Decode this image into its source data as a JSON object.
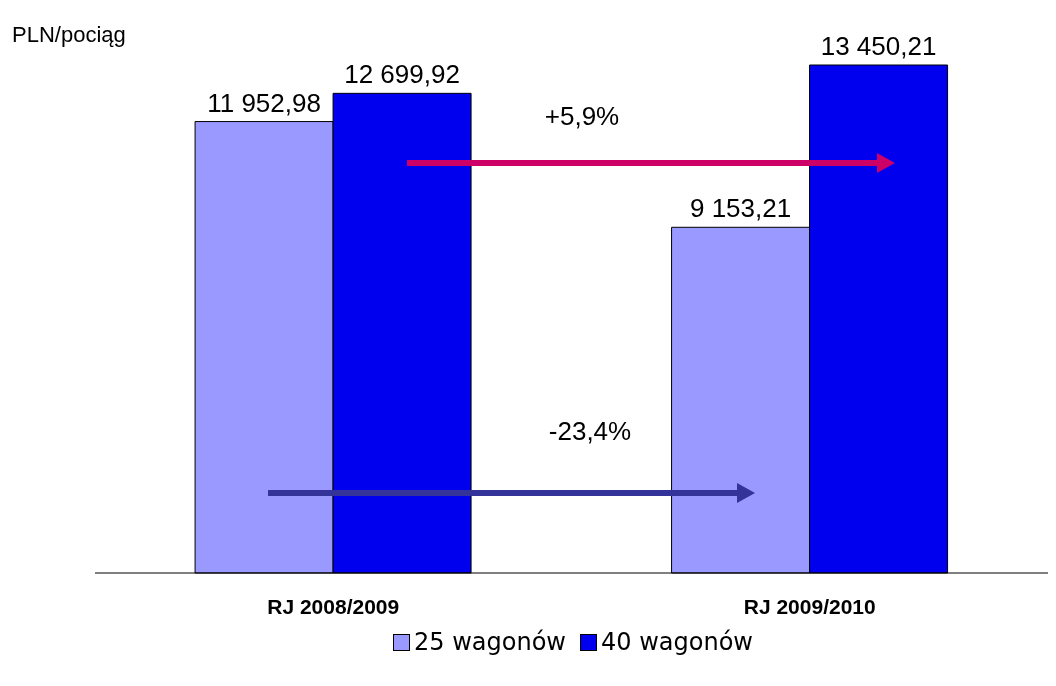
{
  "chart_data": {
    "type": "bar",
    "ylabel": "PLN/pociąg",
    "categories": [
      "RJ 2008/2009",
      "RJ 2009/2010"
    ],
    "series": [
      {
        "name": "25 wagonów",
        "color": "#9999ff",
        "values": [
          11952.98,
          9153.21
        ],
        "value_labels": [
          "11 952,98",
          "9 153,21"
        ]
      },
      {
        "name": "40 wagonów",
        "color": "#0000ee",
        "values": [
          12699.92,
          13450.21
        ],
        "value_labels": [
          "12 699,92",
          "13 450,21"
        ]
      }
    ],
    "annotations": [
      "+5,9%",
      "-23,4%"
    ],
    "legend": "bottom",
    "grid": false
  }
}
